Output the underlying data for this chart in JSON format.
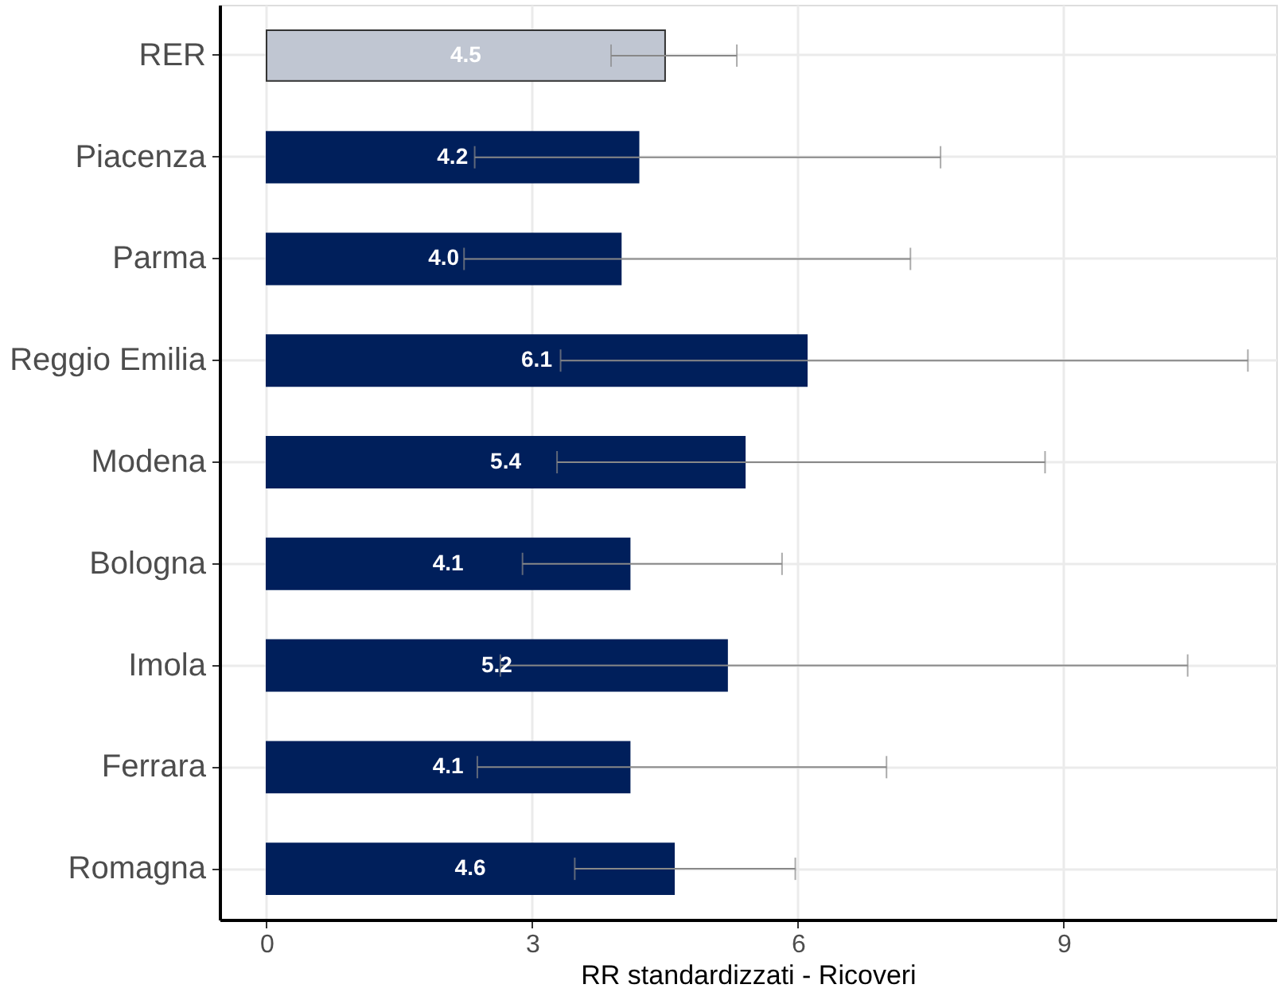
{
  "chart_data": {
    "type": "bar",
    "orientation": "horizontal",
    "xlabel": "RR standardizzati - Ricoveri",
    "categories": [
      "RER",
      "Piacenza",
      "Parma",
      "Reggio Emilia",
      "Modena",
      "Bologna",
      "Imola",
      "Ferrara",
      "Romagna"
    ],
    "values": [
      4.5,
      4.2,
      4.0,
      6.1,
      5.4,
      4.1,
      5.2,
      4.1,
      4.6
    ],
    "value_labels": [
      "4.5",
      "4.2",
      "4.0",
      "6.1",
      "5.4",
      "4.1",
      "5.2",
      "4.1",
      "4.6"
    ],
    "colors": [
      "#c0c6d2",
      "#001f5b",
      "#001f5b",
      "#001f5b",
      "#001f5b",
      "#001f5b",
      "#001f5b",
      "#001f5b",
      "#001f5b"
    ],
    "errors": [
      [
        3.89,
        5.31
      ],
      [
        2.35,
        7.61
      ],
      [
        2.23,
        7.27
      ],
      [
        3.32,
        11.08
      ],
      [
        3.28,
        8.79
      ],
      [
        2.89,
        5.82
      ],
      [
        2.64,
        10.4
      ],
      [
        2.38,
        7.0
      ],
      [
        3.48,
        5.97
      ]
    ],
    "xlim": [
      -0.53,
      11.4
    ],
    "xticks": [
      0,
      3,
      6,
      9
    ],
    "grid": true
  }
}
